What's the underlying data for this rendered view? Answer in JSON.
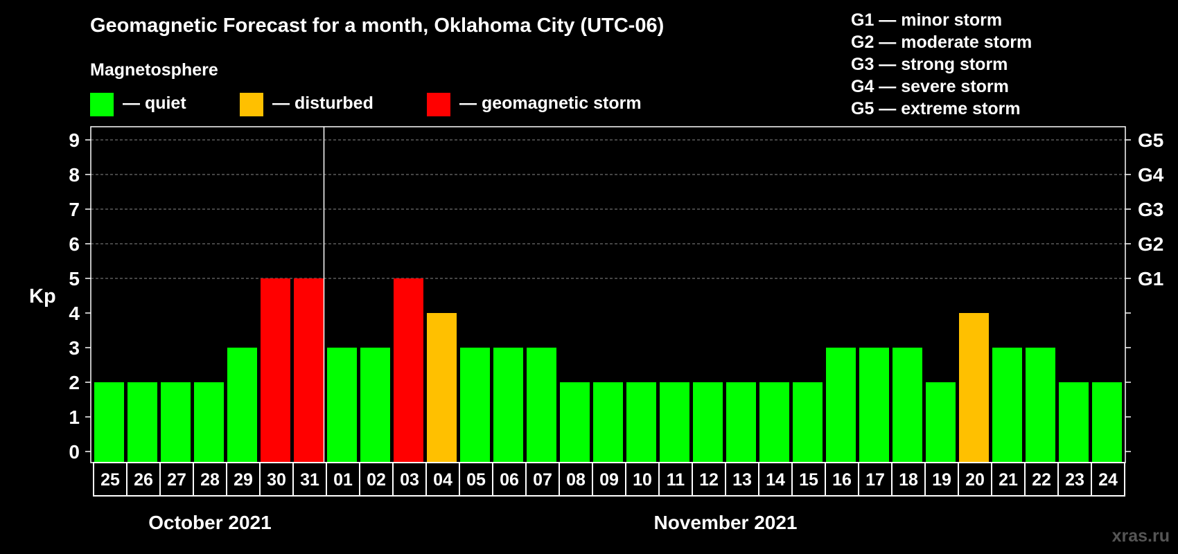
{
  "title": "Geomagnetic Forecast for a month, Oklahoma City (UTC-06)",
  "legend": {
    "heading": "Magnetosphere",
    "items": [
      {
        "label": "— quiet",
        "color": "#00ff00"
      },
      {
        "label": "— disturbed",
        "color": "#ffc000"
      },
      {
        "label": "— geomagnetic storm",
        "color": "#ff0000"
      }
    ]
  },
  "g_legend": [
    "G1 — minor storm",
    "G2 — moderate storm",
    "G3 — strong storm",
    "G4 — severe storm",
    "G5 — extreme storm"
  ],
  "watermark": "xras.ru",
  "chart_data": {
    "type": "bar",
    "ylabel": "Kp",
    "ylim": [
      0,
      9
    ],
    "yticks": [
      "0",
      "1",
      "2",
      "3",
      "4",
      "5",
      "6",
      "7",
      "8",
      "9"
    ],
    "right_axis_labels": [
      {
        "y": 5,
        "label": "G1"
      },
      {
        "y": 6,
        "label": "G2"
      },
      {
        "y": 7,
        "label": "G3"
      },
      {
        "y": 8,
        "label": "G4"
      },
      {
        "y": 9,
        "label": "G5"
      }
    ],
    "grid": "dashed horizontal at 5, 6, 7, 8, 9",
    "categories": [
      "25",
      "26",
      "27",
      "28",
      "29",
      "30",
      "31",
      "01",
      "02",
      "03",
      "04",
      "05",
      "06",
      "07",
      "08",
      "09",
      "10",
      "11",
      "12",
      "13",
      "14",
      "15",
      "16",
      "17",
      "18",
      "19",
      "20",
      "21",
      "22",
      "23",
      "24"
    ],
    "values": [
      2,
      2,
      2,
      2,
      3,
      5,
      5,
      3,
      3,
      5,
      4,
      3,
      3,
      3,
      2,
      2,
      2,
      2,
      2,
      2,
      2,
      2,
      3,
      3,
      3,
      2,
      4,
      3,
      3,
      2,
      2
    ],
    "colors": {
      "quiet": "#00ff00",
      "disturbed": "#ffc000",
      "storm": "#ff0000"
    },
    "months": [
      {
        "label": "October 2021",
        "start": 0,
        "count": 7
      },
      {
        "label": "November 2021",
        "start": 7,
        "count": 24
      }
    ]
  }
}
